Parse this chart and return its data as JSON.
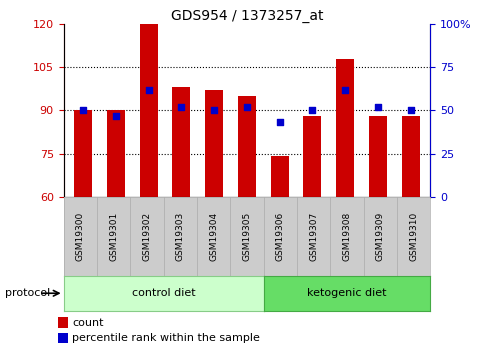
{
  "title": "GDS954 / 1373257_at",
  "samples": [
    "GSM19300",
    "GSM19301",
    "GSM19302",
    "GSM19303",
    "GSM19304",
    "GSM19305",
    "GSM19306",
    "GSM19307",
    "GSM19308",
    "GSM19309",
    "GSM19310"
  ],
  "bar_heights": [
    90,
    90,
    120,
    98,
    97,
    95,
    74,
    88,
    108,
    88,
    88
  ],
  "percentile_ranks": [
    50,
    47,
    62,
    52,
    50,
    52,
    43,
    50,
    62,
    52,
    50
  ],
  "bar_color": "#cc0000",
  "dot_color": "#0000cc",
  "ylim_left": [
    60,
    120
  ],
  "ylim_right": [
    0,
    100
  ],
  "yticks_left": [
    60,
    75,
    90,
    105,
    120
  ],
  "ytick_labels_left": [
    "60",
    "75",
    "90",
    "105",
    "120"
  ],
  "yticks_right": [
    0,
    25,
    50,
    75,
    100
  ],
  "ytick_labels_right": [
    "0",
    "25",
    "50",
    "75",
    "100%"
  ],
  "groups": [
    {
      "label": "control diet",
      "indices": [
        0,
        1,
        2,
        3,
        4,
        5
      ],
      "color": "#ccffcc",
      "edge_color": "#88cc88"
    },
    {
      "label": "ketogenic diet",
      "indices": [
        6,
        7,
        8,
        9,
        10
      ],
      "color": "#66dd66",
      "edge_color": "#44aa44"
    }
  ],
  "group_row_label": "protocol",
  "legend_count_label": "count",
  "legend_pct_label": "percentile rank within the sample",
  "bar_width": 0.55,
  "background_color": "#ffffff",
  "left_axis_color": "#cc0000",
  "right_axis_color": "#0000cc",
  "bar_bottom": 60,
  "dot_size": 20
}
